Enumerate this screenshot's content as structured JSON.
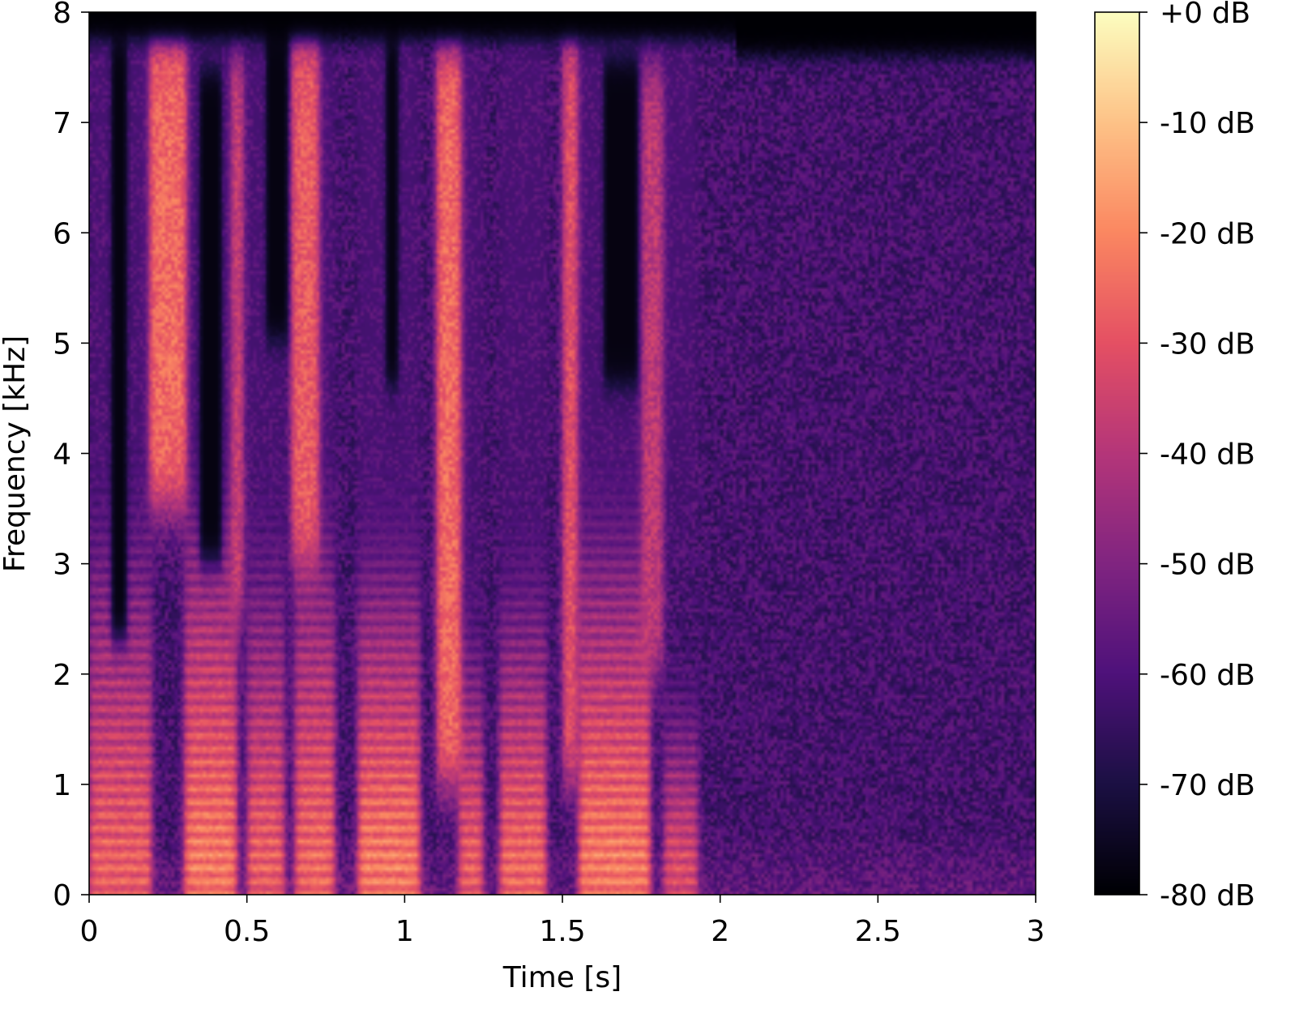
{
  "chart_data": {
    "type": "heatmap",
    "title": "",
    "xlabel": "Time [s]",
    "ylabel": "Frequency [kHz]",
    "xlim": [
      0,
      3
    ],
    "ylim": [
      0,
      8
    ],
    "x_ticks": [
      {
        "value": 0,
        "label": "0"
      },
      {
        "value": 0.5,
        "label": "0.5"
      },
      {
        "value": 1,
        "label": "1"
      },
      {
        "value": 1.5,
        "label": "1.5"
      },
      {
        "value": 2,
        "label": "2"
      },
      {
        "value": 2.5,
        "label": "2.5"
      },
      {
        "value": 3,
        "label": "3"
      }
    ],
    "y_ticks": [
      {
        "value": 0,
        "label": "0"
      },
      {
        "value": 1,
        "label": "1"
      },
      {
        "value": 2,
        "label": "2"
      },
      {
        "value": 3,
        "label": "3"
      },
      {
        "value": 4,
        "label": "4"
      },
      {
        "value": 5,
        "label": "5"
      },
      {
        "value": 6,
        "label": "6"
      },
      {
        "value": 7,
        "label": "7"
      },
      {
        "value": 8,
        "label": "8"
      }
    ],
    "colorbar": {
      "colormap": "magma",
      "range_db": [
        -80,
        0
      ],
      "ticks": [
        {
          "value": 0,
          "label": "+0 dB"
        },
        {
          "value": -10,
          "label": "-10 dB"
        },
        {
          "value": -20,
          "label": "-20 dB"
        },
        {
          "value": -30,
          "label": "-30 dB"
        },
        {
          "value": -40,
          "label": "-40 dB"
        },
        {
          "value": -50,
          "label": "-50 dB"
        },
        {
          "value": -60,
          "label": "-60 dB"
        },
        {
          "value": -70,
          "label": "-70 dB"
        },
        {
          "value": -80,
          "label": "-80 dB"
        }
      ],
      "stops": [
        "#000004",
        "#1c1044",
        "#4f127b",
        "#812581",
        "#b5367a",
        "#e55064",
        "#fb8761",
        "#fec287",
        "#fcfdbf"
      ]
    },
    "voiced_segments": [
      {
        "t_start": 0.0,
        "t_end": 0.2,
        "f_top_khz": 2.3,
        "level_db": -20
      },
      {
        "t_start": 0.3,
        "t_end": 0.47,
        "f_top_khz": 2.4,
        "level_db": -15
      },
      {
        "t_start": 0.5,
        "t_end": 0.62,
        "f_top_khz": 2.1,
        "level_db": -20
      },
      {
        "t_start": 0.65,
        "t_end": 0.78,
        "f_top_khz": 2.3,
        "level_db": -18
      },
      {
        "t_start": 0.85,
        "t_end": 1.05,
        "f_top_khz": 2.0,
        "level_db": -15
      },
      {
        "t_start": 1.17,
        "t_end": 1.25,
        "f_top_khz": 1.5,
        "level_db": -20
      },
      {
        "t_start": 1.3,
        "t_end": 1.45,
        "f_top_khz": 1.8,
        "level_db": -18
      },
      {
        "t_start": 1.55,
        "t_end": 1.78,
        "f_top_khz": 2.2,
        "level_db": -15
      },
      {
        "t_start": 1.82,
        "t_end": 1.93,
        "f_top_khz": 1.2,
        "level_db": -25
      }
    ],
    "fricative_streaks": [
      {
        "t_start": 0.19,
        "t_end": 0.31,
        "f_low_khz": 3.5,
        "f_high_khz": 7.8,
        "level_db": -25
      },
      {
        "t_start": 0.45,
        "t_end": 0.49,
        "f_low_khz": 2.5,
        "f_high_khz": 7.6,
        "level_db": -35
      },
      {
        "t_start": 0.64,
        "t_end": 0.73,
        "f_low_khz": 3.0,
        "f_high_khz": 7.8,
        "level_db": -28
      },
      {
        "t_start": 1.1,
        "t_end": 1.18,
        "f_low_khz": 1.0,
        "f_high_khz": 7.7,
        "level_db": -25
      },
      {
        "t_start": 1.5,
        "t_end": 1.55,
        "f_low_khz": 1.0,
        "f_high_khz": 7.8,
        "level_db": -30
      },
      {
        "t_start": 1.75,
        "t_end": 1.82,
        "f_low_khz": 2.0,
        "f_high_khz": 7.5,
        "level_db": -38
      }
    ],
    "silent_gaps": [
      {
        "t_start": 0.07,
        "t_end": 0.12,
        "f_low_khz": 2.3,
        "f_high_khz": 7.8
      },
      {
        "t_start": 0.35,
        "t_end": 0.42,
        "f_low_khz": 3.0,
        "f_high_khz": 7.5
      },
      {
        "t_start": 0.56,
        "t_end": 0.63,
        "f_low_khz": 5.0,
        "f_high_khz": 7.9
      },
      {
        "t_start": 0.94,
        "t_end": 0.98,
        "f_low_khz": 4.6,
        "f_high_khz": 7.8
      },
      {
        "t_start": 1.63,
        "t_end": 1.74,
        "f_low_khz": 4.6,
        "f_high_khz": 7.6
      }
    ],
    "background_level_db": -62,
    "rolloff_khz": 7.6
  }
}
